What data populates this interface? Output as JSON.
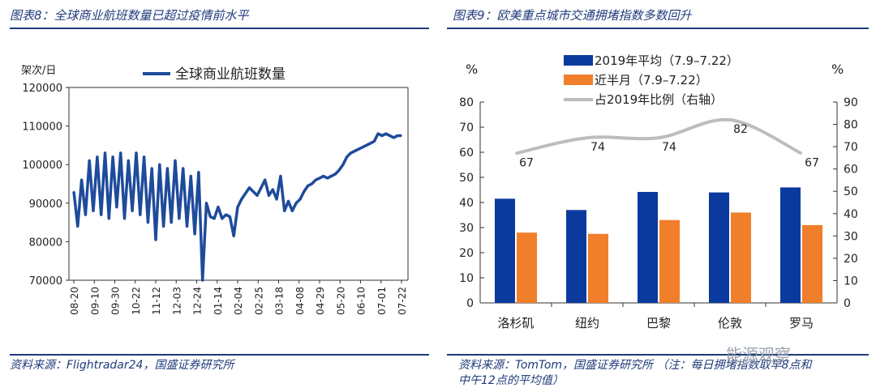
{
  "left": {
    "title": "图表8：全球商业航班数量已超过疫情前水平",
    "source": "资料来源：Flightradar24，国盛证券研究所",
    "unit": "架次/日",
    "legend": "全球商业航班数量",
    "ytick_labels": [
      "120000",
      "110000",
      "100000",
      "90000",
      "80000",
      "70000"
    ],
    "xtick_labels": [
      "08-20",
      "09-10",
      "09-30",
      "10-22",
      "11-12",
      "12-03",
      "12-24",
      "01-14",
      "02-04",
      "02-25",
      "03-18",
      "04-08",
      "04-29",
      "05-20",
      "06-10",
      "07-01",
      "07-22"
    ],
    "line_color": "#1e4b9b"
  },
  "right": {
    "title": "图表9：欧美重点城市交通拥堵指数多数回升",
    "source_line1": "资料来源：TomTom，国盛证券研究所 （注：每日拥堵指数取早8点和",
    "source_line2": "中午12点的平均值）",
    "left_unit": "%",
    "right_unit": "%",
    "left_ticks": [
      "80",
      "70",
      "60",
      "50",
      "40",
      "30",
      "20",
      "10",
      "0"
    ],
    "right_ticks": [
      "90",
      "80",
      "70",
      "60",
      "50",
      "40",
      "30",
      "20",
      "10",
      "0"
    ],
    "legend": [
      "2019年平均（7.9–7.22）",
      "近半月（7.9–7.22）",
      "占2019年比例（右轴）"
    ],
    "data_labels": [
      "67",
      "74",
      "74",
      "82",
      "67"
    ],
    "colors": {
      "s2019": "#0b3a9e",
      "recent": "#f07e2a",
      "ratio": "#bdbdbd"
    }
  },
  "watermark": "能源观察",
  "chart_data": [
    {
      "type": "line",
      "title": "全球商业航班数量已超过疫情前水平",
      "ylabel": "架次/日",
      "ylim": [
        70000,
        120000
      ],
      "x_tick_labels": [
        "08-20",
        "09-10",
        "09-30",
        "10-22",
        "11-12",
        "12-03",
        "12-24",
        "01-14",
        "02-04",
        "02-25",
        "03-18",
        "04-08",
        "04-29",
        "05-20",
        "06-10",
        "07-01",
        "07-22"
      ],
      "series": [
        {
          "name": "全球商业航班数量",
          "x": [
            0,
            4,
            8,
            12,
            16,
            20,
            24,
            28,
            32,
            36,
            40,
            44,
            48,
            52,
            56,
            60,
            64,
            68,
            72,
            76,
            80,
            84,
            88,
            92,
            96,
            100,
            104,
            108,
            112,
            116,
            120,
            124,
            128,
            132,
            136,
            140,
            144,
            148,
            152,
            156,
            160,
            164,
            168,
            172,
            176,
            180,
            184,
            188,
            192,
            196,
            200,
            204,
            208,
            212,
            216,
            220,
            224,
            228,
            232,
            236,
            240,
            244,
            248,
            252,
            256,
            260,
            264,
            268,
            272,
            276,
            280,
            284,
            288,
            292,
            296,
            300,
            304,
            308,
            312,
            316,
            320,
            324,
            328,
            332,
            336
          ],
          "values": [
            93000,
            84000,
            96000,
            87000,
            101000,
            88000,
            102000,
            87000,
            103000,
            86000,
            102000,
            89000,
            103000,
            86000,
            101000,
            88000,
            103000,
            87000,
            102000,
            85000,
            99000,
            80500,
            100000,
            84000,
            99000,
            85000,
            101000,
            86000,
            99000,
            84000,
            97000,
            82000,
            98000,
            70000,
            90000,
            86500,
            86000,
            89000,
            86000,
            87000,
            86500,
            81500,
            89000,
            91000,
            92500,
            94000,
            93000,
            92000,
            94000,
            96000,
            92000,
            93500,
            91000,
            97000,
            88000,
            90500,
            88000,
            90000,
            91000,
            93000,
            94500,
            95000,
            96000,
            96500,
            97000,
            96500,
            97000,
            97500,
            98500,
            100000,
            102000,
            103000,
            103500,
            104000,
            104500,
            105000,
            105500,
            106000,
            108000,
            107500,
            108000,
            107500,
            107000,
            107500,
            107500
          ]
        }
      ]
    },
    {
      "type": "bar",
      "title": "欧美重点城市交通拥堵指数多数回升",
      "categories": [
        "洛杉矶",
        "纽约",
        "巴黎",
        "伦敦",
        "罗马"
      ],
      "ylim": [
        0,
        80
      ],
      "y2lim": [
        0,
        90
      ],
      "series": [
        {
          "name": "2019年平均（7.9–7.22）",
          "values": [
            41.5,
            37,
            44.2,
            44,
            46
          ]
        },
        {
          "name": "近半月（7.9–7.22）",
          "values": [
            28,
            27.5,
            33,
            36,
            31
          ]
        },
        {
          "name": "占2019年比例（右轴）",
          "type": "line",
          "axis": "right",
          "values": [
            67,
            74,
            74,
            82,
            67
          ]
        }
      ]
    }
  ]
}
